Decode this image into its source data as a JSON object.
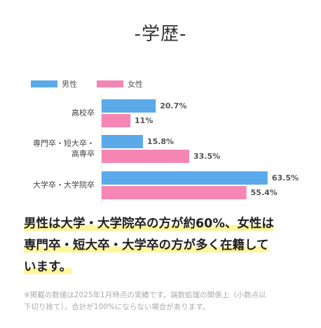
{
  "title": "-学歴-",
  "colors": {
    "male": "#5aaaea",
    "female": "#f586b4"
  },
  "legend": {
    "male": "男性",
    "female": "女性"
  },
  "chart_data": {
    "type": "bar",
    "orientation": "horizontal",
    "categories": [
      "高校卒",
      "専門卒・短大卒・高専卒",
      "大学卒・大学院卒"
    ],
    "category_lines": [
      [
        "高校卒"
      ],
      [
        "専門卒・短大卒・",
        "高専卒"
      ],
      [
        "大学卒・大学院卒"
      ]
    ],
    "series": [
      {
        "name": "男性",
        "values": [
          20.7,
          15.8,
          63.5
        ],
        "labels": [
          "20.7%",
          "15.8%",
          "63.5%"
        ]
      },
      {
        "name": "女性",
        "values": [
          11,
          33.5,
          55.4
        ],
        "labels": [
          "11%",
          "33.5%",
          "55.4%"
        ]
      }
    ],
    "xlim": [
      0,
      65
    ],
    "legend_position": "top-left",
    "grid": false
  },
  "summary": {
    "line1": "男性は大学・大学院卒の方が約60%、女性は",
    "line2": "専門卒・短大卒・大学卒の方が多く在籍して",
    "line3": "います。"
  },
  "note": {
    "line1": "※掲載の数値は2025年1月時点の実績です。端数処理の関係上（小数点以",
    "line2": "下切り捨て）、合計が100%にならない場合があります。"
  }
}
